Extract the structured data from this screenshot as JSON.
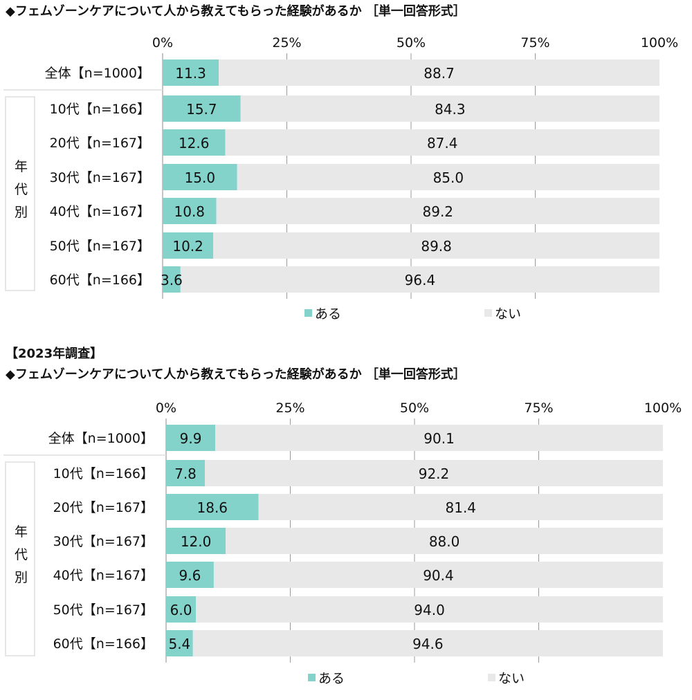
{
  "chart_data": [
    {
      "type": "bar",
      "orientation": "horizontal",
      "stacked": true,
      "heading": "",
      "title": "◆フェムゾーンケアについて人から教えてもらった経験があるか ［単一回答形式］",
      "group_label": "年代別",
      "categories": [
        "全体【n=1000】",
        "10代【n=166】",
        "20代【n=167】",
        "30代【n=167】",
        "40代【n=167】",
        "50代【n=167】",
        "60代【n=166】"
      ],
      "series": [
        {
          "name": "ある",
          "color": "#84d3cb",
          "values": [
            11.3,
            15.7,
            12.6,
            15.0,
            10.8,
            10.2,
            3.6
          ]
        },
        {
          "name": "ない",
          "color": "#e8e8e8",
          "values": [
            88.7,
            84.3,
            87.4,
            85.0,
            89.2,
            89.8,
            96.4
          ]
        }
      ],
      "xlim": [
        0,
        100
      ],
      "ticks": [
        "0%",
        "25%",
        "50%",
        "75%",
        "100%"
      ],
      "grid": true,
      "legend": "bottom"
    },
    {
      "type": "bar",
      "orientation": "horizontal",
      "stacked": true,
      "heading": "【2023年調査】",
      "title": "◆フェムゾーンケアについて人から教えてもらった経験があるか ［単一回答形式］",
      "group_label": "年代別",
      "categories": [
        "全体【n=1000】",
        "10代【n=166】",
        "20代【n=167】",
        "30代【n=167】",
        "40代【n=167】",
        "50代【n=167】",
        "60代【n=166】"
      ],
      "series": [
        {
          "name": "ある",
          "color": "#84d3cb",
          "values": [
            9.9,
            7.8,
            18.6,
            12.0,
            9.6,
            6.0,
            5.4
          ]
        },
        {
          "name": "ない",
          "color": "#e8e8e8",
          "values": [
            90.1,
            92.2,
            81.4,
            88.0,
            90.4,
            94.0,
            94.6
          ]
        }
      ],
      "xlim": [
        0,
        100
      ],
      "ticks": [
        "0%",
        "25%",
        "50%",
        "75%",
        "100%"
      ],
      "grid": true,
      "legend": "bottom"
    }
  ]
}
